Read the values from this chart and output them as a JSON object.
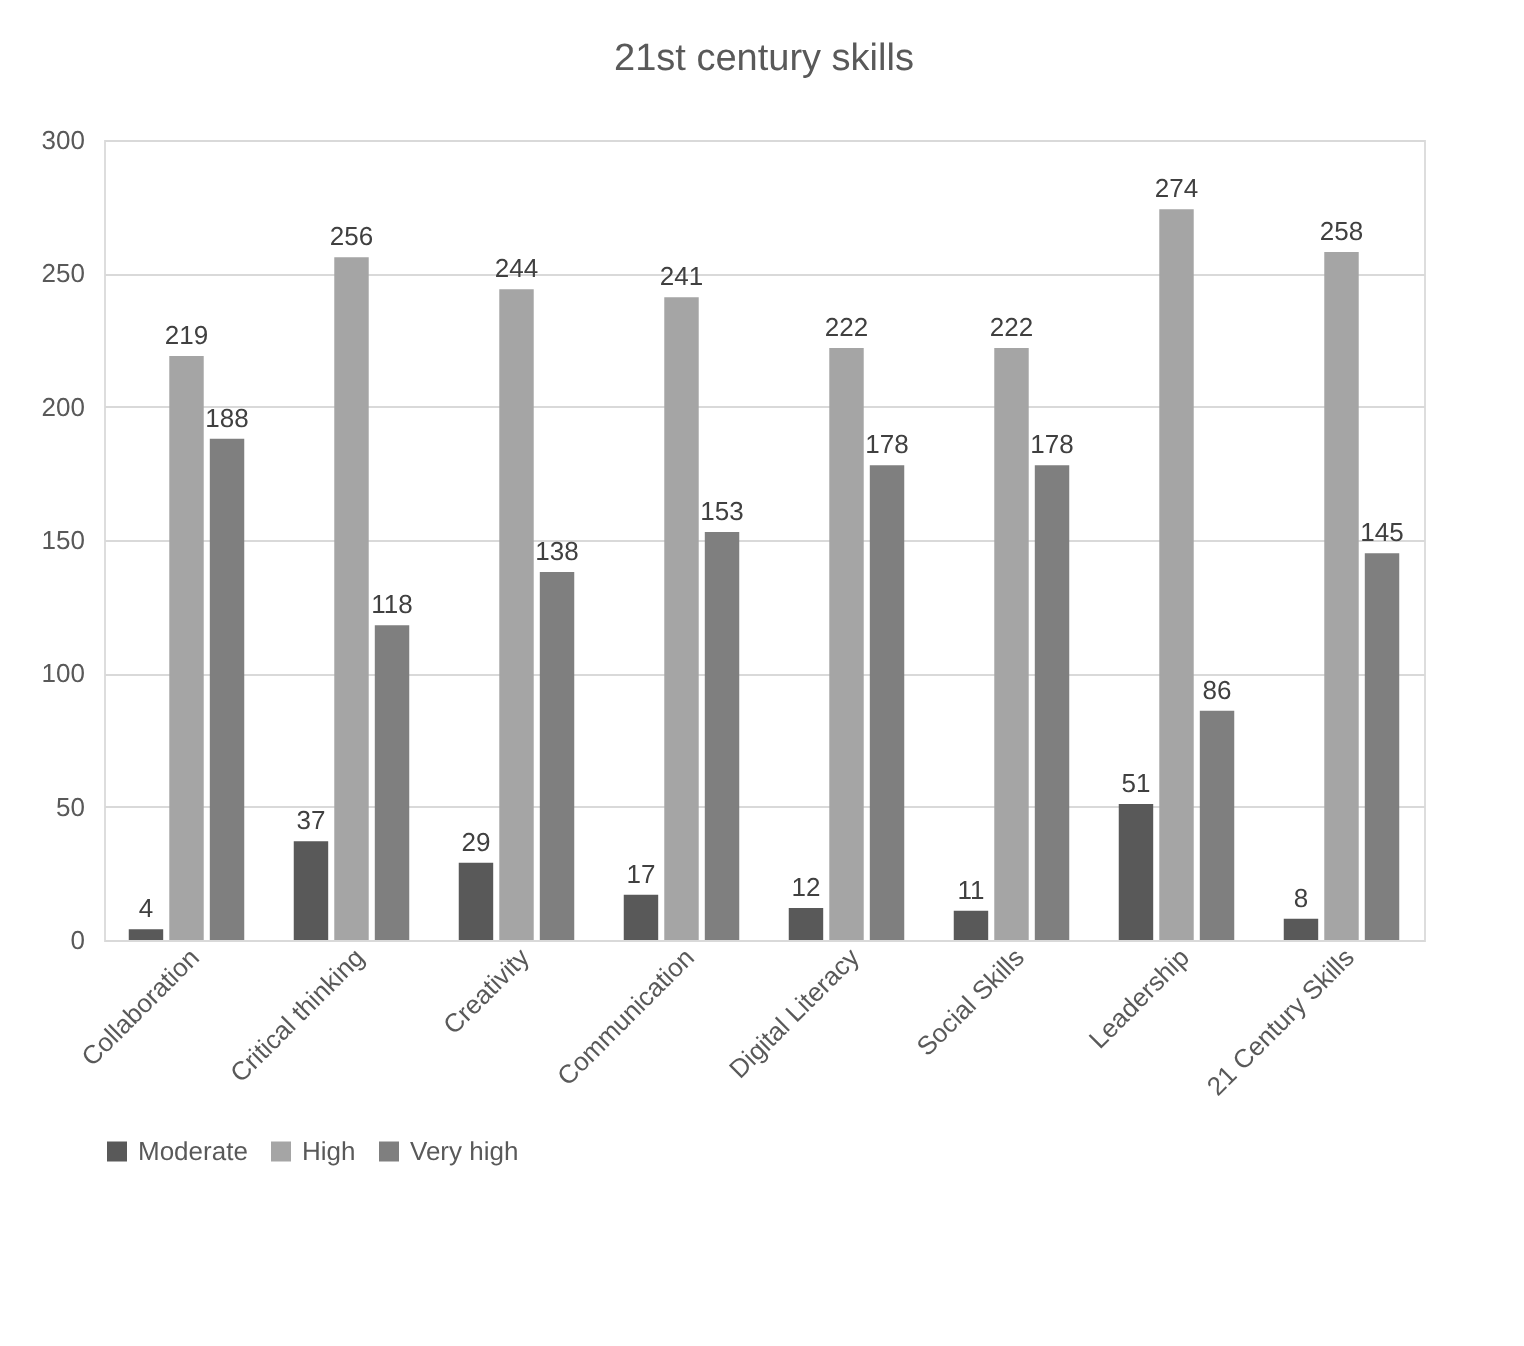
{
  "chart_data": {
    "type": "bar",
    "title": "21st century skills",
    "categories": [
      "Collaboration",
      "Critical thinking",
      "Creativity",
      "Communication",
      "Digital Literacy",
      "Social Skills",
      "Leadership",
      "21 Century Skills"
    ],
    "series": [
      {
        "name": "Moderate",
        "color": "#595959",
        "values": [
          4,
          37,
          29,
          17,
          12,
          11,
          51,
          8
        ]
      },
      {
        "name": "High",
        "color": "#a5a5a5",
        "values": [
          219,
          256,
          244,
          241,
          222,
          222,
          274,
          258
        ]
      },
      {
        "name": "Very high",
        "color": "#7f7f7f",
        "values": [
          188,
          118,
          138,
          153,
          178,
          178,
          86,
          145
        ]
      }
    ],
    "ylim": [
      0,
      300
    ],
    "yticks": [
      0,
      50,
      100,
      150,
      200,
      250,
      300
    ],
    "grid": "y",
    "legend": "bottom",
    "data_labels": true
  }
}
